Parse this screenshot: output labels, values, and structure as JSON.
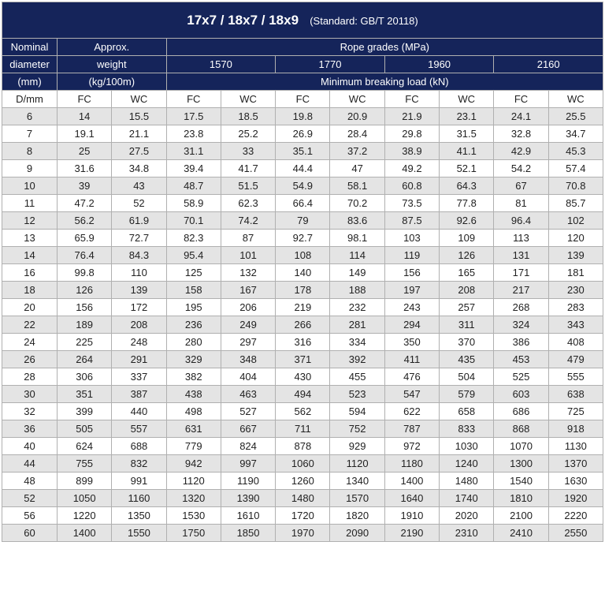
{
  "colors": {
    "header_bg": "#15245a",
    "header_text": "#ffffff",
    "row_odd_bg": "#e4e4e4",
    "row_even_bg": "#ffffff",
    "border": "#b0b0b0",
    "text": "#222222"
  },
  "title": {
    "main": "17x7 / 18x7 / 18x9",
    "standard": "(Standard: GB/T 20118)"
  },
  "headers": {
    "nominal_diameter_l1": "Nominal",
    "nominal_diameter_l2": "diameter",
    "nominal_diameter_l3": "(mm)",
    "approx_weight_l1": "Approx.",
    "approx_weight_l2": "weight",
    "approx_weight_l3": "(kg/100m)",
    "rope_grades": "Rope grades (MPa)",
    "grades": [
      "1570",
      "1770",
      "1960",
      "2160"
    ],
    "mbl": "Minimum breaking load (kN)"
  },
  "subheaders": [
    "D/mm",
    "FC",
    "WC",
    "FC",
    "WC",
    "FC",
    "WC",
    "FC",
    "WC",
    "FC",
    "WC"
  ],
  "rows": [
    [
      "6",
      "14",
      "15.5",
      "17.5",
      "18.5",
      "19.8",
      "20.9",
      "21.9",
      "23.1",
      "24.1",
      "25.5"
    ],
    [
      "7",
      "19.1",
      "21.1",
      "23.8",
      "25.2",
      "26.9",
      "28.4",
      "29.8",
      "31.5",
      "32.8",
      "34.7"
    ],
    [
      "8",
      "25",
      "27.5",
      "31.1",
      "33",
      "35.1",
      "37.2",
      "38.9",
      "41.1",
      "42.9",
      "45.3"
    ],
    [
      "9",
      "31.6",
      "34.8",
      "39.4",
      "41.7",
      "44.4",
      "47",
      "49.2",
      "52.1",
      "54.2",
      "57.4"
    ],
    [
      "10",
      "39",
      "43",
      "48.7",
      "51.5",
      "54.9",
      "58.1",
      "60.8",
      "64.3",
      "67",
      "70.8"
    ],
    [
      "11",
      "47.2",
      "52",
      "58.9",
      "62.3",
      "66.4",
      "70.2",
      "73.5",
      "77.8",
      "81",
      "85.7"
    ],
    [
      "12",
      "56.2",
      "61.9",
      "70.1",
      "74.2",
      "79",
      "83.6",
      "87.5",
      "92.6",
      "96.4",
      "102"
    ],
    [
      "13",
      "65.9",
      "72.7",
      "82.3",
      "87",
      "92.7",
      "98.1",
      "103",
      "109",
      "113",
      "120"
    ],
    [
      "14",
      "76.4",
      "84.3",
      "95.4",
      "101",
      "108",
      "114",
      "119",
      "126",
      "131",
      "139"
    ],
    [
      "16",
      "99.8",
      "110",
      "125",
      "132",
      "140",
      "149",
      "156",
      "165",
      "171",
      "181"
    ],
    [
      "18",
      "126",
      "139",
      "158",
      "167",
      "178",
      "188",
      "197",
      "208",
      "217",
      "230"
    ],
    [
      "20",
      "156",
      "172",
      "195",
      "206",
      "219",
      "232",
      "243",
      "257",
      "268",
      "283"
    ],
    [
      "22",
      "189",
      "208",
      "236",
      "249",
      "266",
      "281",
      "294",
      "311",
      "324",
      "343"
    ],
    [
      "24",
      "225",
      "248",
      "280",
      "297",
      "316",
      "334",
      "350",
      "370",
      "386",
      "408"
    ],
    [
      "26",
      "264",
      "291",
      "329",
      "348",
      "371",
      "392",
      "411",
      "435",
      "453",
      "479"
    ],
    [
      "28",
      "306",
      "337",
      "382",
      "404",
      "430",
      "455",
      "476",
      "504",
      "525",
      "555"
    ],
    [
      "30",
      "351",
      "387",
      "438",
      "463",
      "494",
      "523",
      "547",
      "579",
      "603",
      "638"
    ],
    [
      "32",
      "399",
      "440",
      "498",
      "527",
      "562",
      "594",
      "622",
      "658",
      "686",
      "725"
    ],
    [
      "36",
      "505",
      "557",
      "631",
      "667",
      "711",
      "752",
      "787",
      "833",
      "868",
      "918"
    ],
    [
      "40",
      "624",
      "688",
      "779",
      "824",
      "878",
      "929",
      "972",
      "1030",
      "1070",
      "1130"
    ],
    [
      "44",
      "755",
      "832",
      "942",
      "997",
      "1060",
      "1120",
      "1180",
      "1240",
      "1300",
      "1370"
    ],
    [
      "48",
      "899",
      "991",
      "1120",
      "1190",
      "1260",
      "1340",
      "1400",
      "1480",
      "1540",
      "1630"
    ],
    [
      "52",
      "1050",
      "1160",
      "1320",
      "1390",
      "1480",
      "1570",
      "1640",
      "1740",
      "1810",
      "1920"
    ],
    [
      "56",
      "1220",
      "1350",
      "1530",
      "1610",
      "1720",
      "1820",
      "1910",
      "2020",
      "2100",
      "2220"
    ],
    [
      "60",
      "1400",
      "1550",
      "1750",
      "1850",
      "1970",
      "2090",
      "2190",
      "2310",
      "2410",
      "2550"
    ]
  ]
}
